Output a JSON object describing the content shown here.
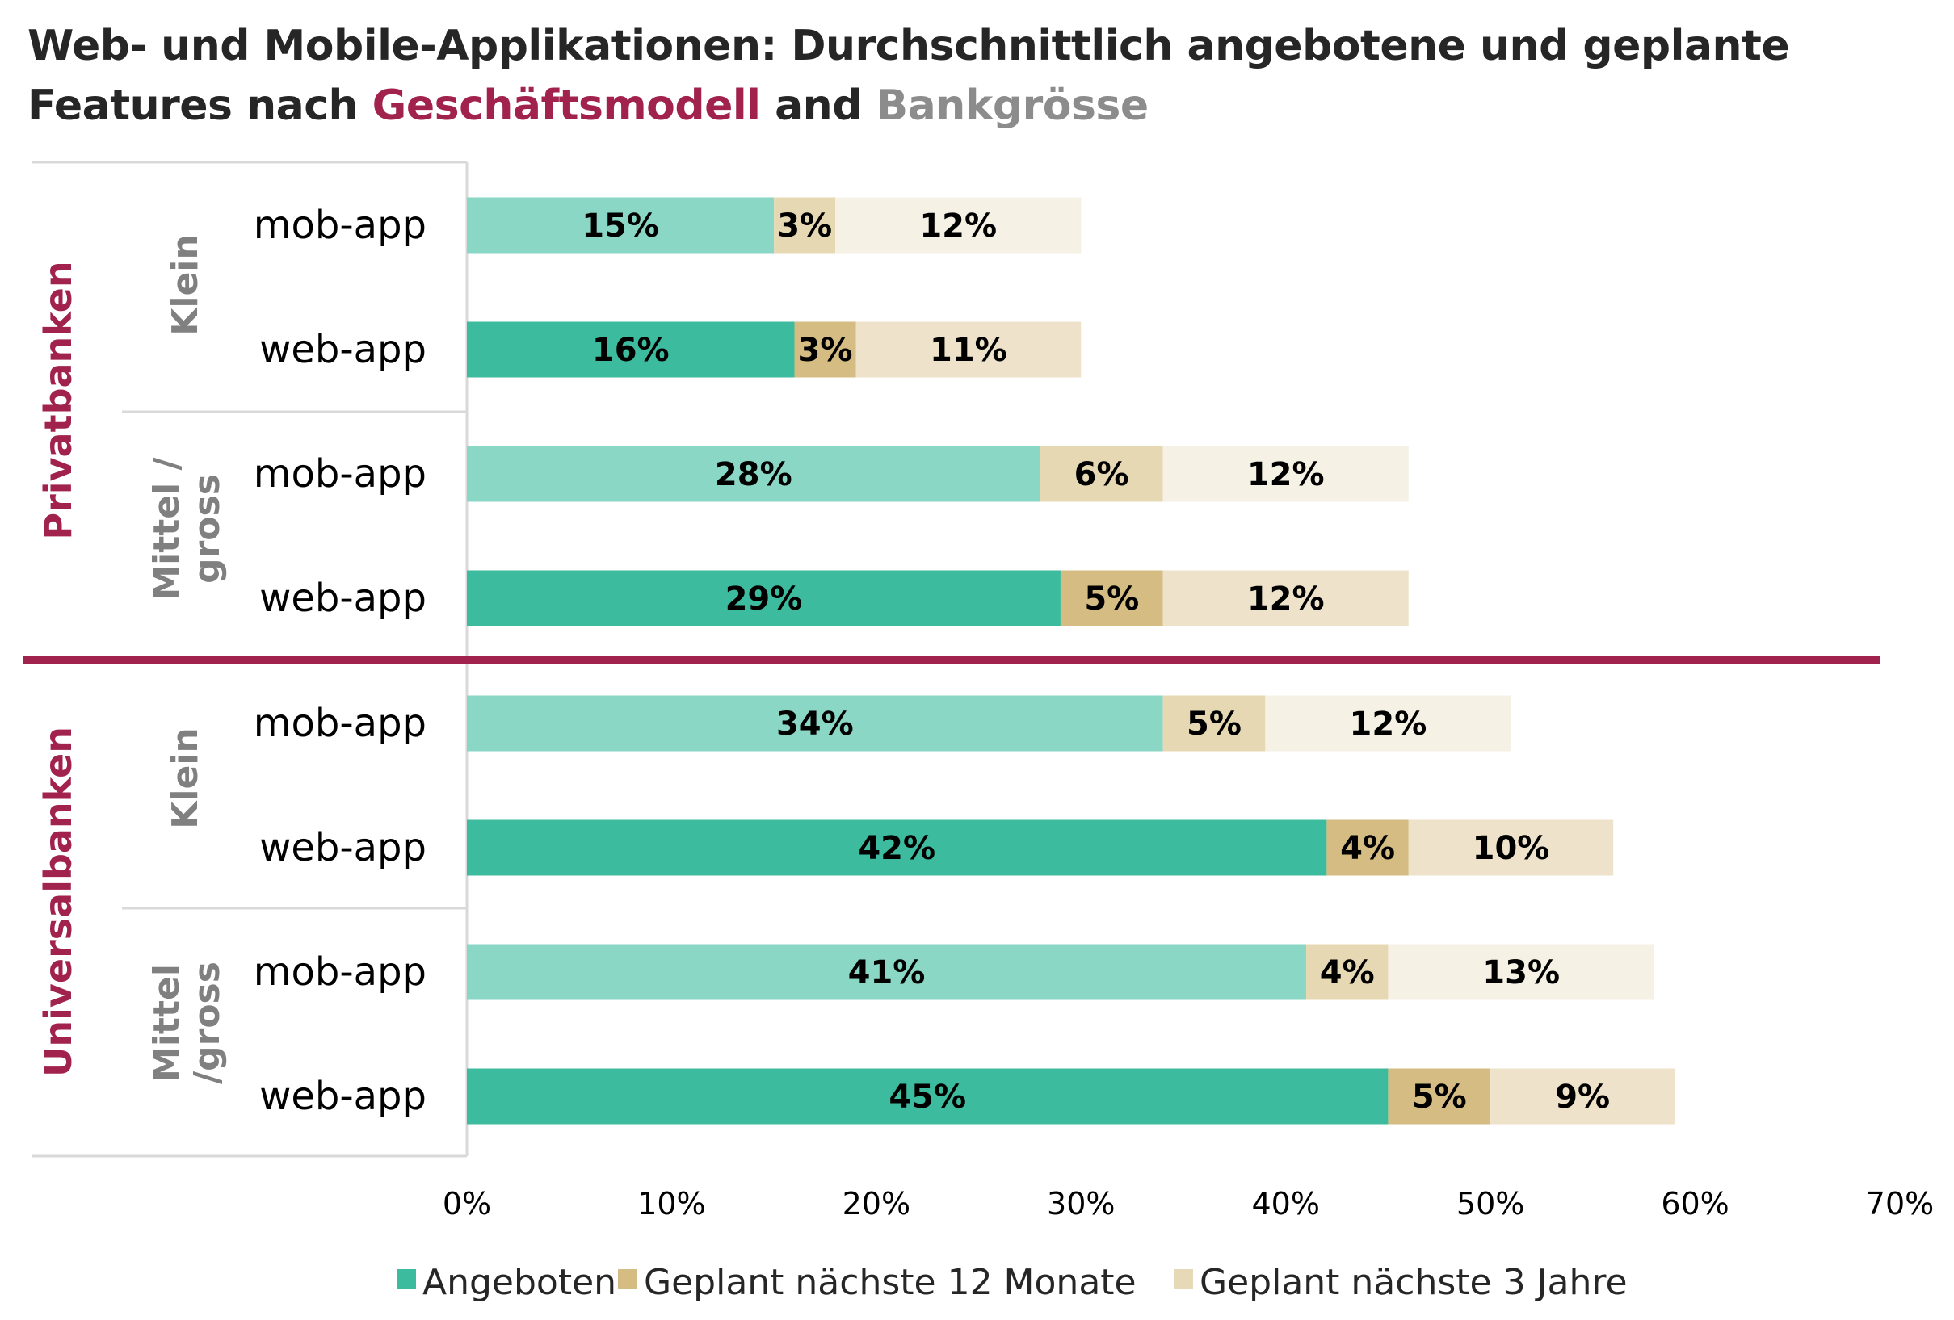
{
  "title": {
    "part1": "Web- und Mobile-Applikationen: Durchschnittlich angebotene und geplante",
    "part2": "Features nach ",
    "highlight1": "Geschäftsmodell",
    "part3": " and ",
    "highlight2": "Bankgrösse"
  },
  "colors": {
    "accent": "#A0224D",
    "size_label": "#808080",
    "angeboten_mob": "#8AD7C5",
    "angeboten_web": "#3DBB9E",
    "geplant12_mob": "#E6D8B3",
    "geplant12_web": "#D4BC82",
    "geplant3_mob": "#F5F1E4",
    "geplant3_web": "#EEE3CA",
    "legend": [
      "#3DBB9E",
      "#D4BC82",
      "#E6D9B8"
    ]
  },
  "chart_data": {
    "type": "bar",
    "orientation": "horizontal",
    "stacked": true,
    "title": "Web- und Mobile-Applikationen: Durchschnittlich angebotene und geplante Features nach Geschäftsmodell and Bankgrösse",
    "groups": [
      {
        "name": "Privatbanken",
        "subgroups": [
          {
            "name": "Klein",
            "rows": [
              "mob-app",
              "web-app"
            ]
          },
          {
            "name": "Mittel / gross",
            "rows": [
              "mob-app",
              "web-app"
            ]
          }
        ]
      },
      {
        "name": "Universalbanken",
        "subgroups": [
          {
            "name": "Klein",
            "rows": [
              "mob-app",
              "web-app"
            ]
          },
          {
            "name": "Mittel /gross",
            "rows": [
              "mob-app",
              "web-app"
            ]
          }
        ]
      }
    ],
    "categories": [
      "mob-app",
      "web-app",
      "mob-app",
      "web-app",
      "mob-app",
      "web-app",
      "mob-app",
      "web-app"
    ],
    "series": [
      {
        "name": "Angeboten",
        "values": [
          15,
          16,
          28,
          29,
          34,
          42,
          41,
          45
        ]
      },
      {
        "name": "Geplant nächste 12 Monate",
        "values": [
          3,
          3,
          6,
          5,
          5,
          4,
          4,
          5
        ]
      },
      {
        "name": "Geplant nächste 3 Jahre",
        "values": [
          12,
          11,
          12,
          12,
          12,
          10,
          13,
          9
        ]
      }
    ],
    "xlim": [
      0,
      70
    ],
    "xticks": [
      "0%",
      "10%",
      "20%",
      "30%",
      "40%",
      "50%",
      "60%",
      "70%"
    ],
    "value_suffix": "%",
    "grid": false,
    "legend_position": "bottom"
  }
}
